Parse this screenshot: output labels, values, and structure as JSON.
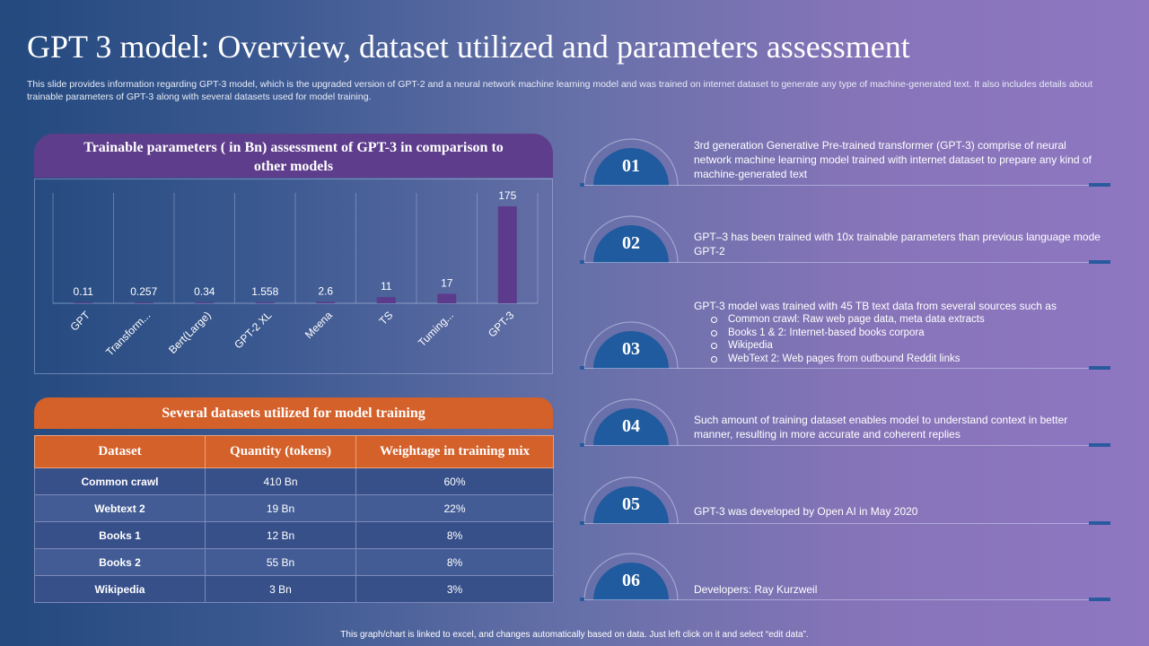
{
  "title": "GPT 3 model: Overview, dataset utilized and parameters assessment",
  "subtitle": "This slide provides information regarding GPT-3 model, which is the upgraded version of GPT-2 and a neural network machine learning model and was trained on internet dataset to generate any type of machine-generated text. It also includes details about trainable parameters of GPT-3 along with several datasets used for model training.",
  "colors": {
    "bar": "#5c3a8c",
    "table_header": "#d4602a",
    "chart_header": "#5e3d8c",
    "arc_fill": "#1f5b9e"
  },
  "chart_header": "Trainable parameters ( in Bn) assessment of GPT-3 in comparison to other models",
  "chart_data": {
    "type": "bar",
    "title": "Trainable parameters ( in Bn) assessment of GPT-3 in comparison to other models",
    "categories": [
      "GPT",
      "Transform...",
      "Bert(Large)",
      "GPT-2 XL",
      "Meena",
      "TS",
      "Tuming...",
      "GPT-3"
    ],
    "values": [
      0.11,
      0.257,
      0.34,
      1.558,
      2.6,
      11,
      17,
      175
    ],
    "value_labels": [
      "0.11",
      "0.257",
      "0.34",
      "1.558",
      "2.6",
      "11",
      "17",
      "175"
    ],
    "xlabel": "",
    "ylabel": "",
    "ylim": [
      0,
      175
    ],
    "grid": "vertical"
  },
  "table": {
    "header": "Several datasets utilized for model training",
    "columns": [
      "Dataset",
      "Quantity (tokens)",
      "Weightage in training mix"
    ],
    "rows": [
      [
        "Common crawl",
        "410 Bn",
        "60%"
      ],
      [
        "Webtext 2",
        "19 Bn",
        "22%"
      ],
      [
        "Books 1",
        "12 Bn",
        "8%"
      ],
      [
        "Books 2",
        "55 Bn",
        "8%"
      ],
      [
        "Wikipedia",
        "3 Bn",
        "3%"
      ]
    ]
  },
  "points": [
    {
      "num": "01",
      "text": "3rd generation Generative Pre-trained transformer (GPT-3) comprise of neural network machine learning model trained with internet dataset to prepare any kind of machine-generated text"
    },
    {
      "num": "02",
      "text": "GPT–3 has been trained with 10x trainable parameters than previous language mode GPT-2"
    },
    {
      "num": "03",
      "text": "GPT-3 model was trained with 45 TB text data from several sources such as",
      "bullets": [
        "Common crawl: Raw web page data, meta data extracts",
        "Books 1 & 2: Internet-based books corpora",
        "Wikipedia",
        "WebText 2: Web pages from outbound Reddit links"
      ]
    },
    {
      "num": "04",
      "text": "Such amount of training dataset enables model to understand context in better manner, resulting in more accurate and coherent replies"
    },
    {
      "num": "05",
      "text": "GPT-3 was developed by Open AI in May 2020"
    },
    {
      "num": "06",
      "text": "Developers: Ray Kurzweil"
    }
  ],
  "footer": "This graph/chart is linked to excel, and changes automatically based on data. Just left click on it and select “edit data”."
}
